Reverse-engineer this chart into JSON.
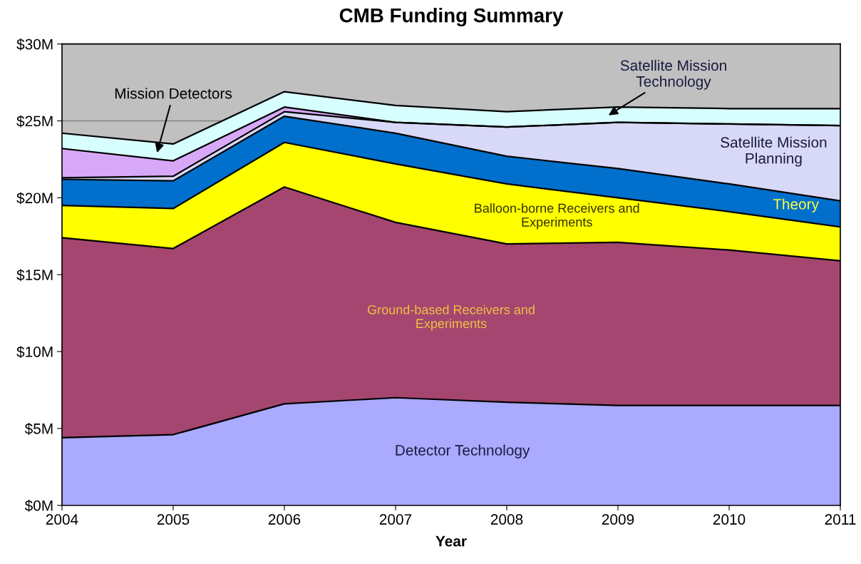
{
  "chart_data": {
    "type": "area",
    "stacked": true,
    "title": "CMB Funding Summary",
    "xlabel": "Year",
    "x": [
      2004,
      2005,
      2006,
      2007,
      2008,
      2009,
      2010,
      2011
    ],
    "series": [
      {
        "name": "Detector Technology",
        "color": "#aaaaff",
        "values": [
          4.4,
          4.6,
          6.6,
          7.0,
          6.7,
          6.5,
          6.5,
          6.5
        ]
      },
      {
        "name": "Ground-based Receivers and Experiments",
        "color": "#a54670",
        "values": [
          13.0,
          12.1,
          14.1,
          11.4,
          10.3,
          10.6,
          10.1,
          9.4
        ]
      },
      {
        "name": "Balloon-borne Receivers and Experiments",
        "color": "#ffff00",
        "values": [
          2.1,
          2.6,
          2.9,
          3.8,
          3.9,
          2.9,
          2.5,
          2.2
        ]
      },
      {
        "name": "Theory",
        "color": "#0070cc",
        "values": [
          1.7,
          1.8,
          1.7,
          2.0,
          1.8,
          1.9,
          1.8,
          1.7
        ]
      },
      {
        "name": "Satellite Mission Planning",
        "color": "#d8d8f8",
        "values": [
          0.1,
          0.3,
          0.3,
          0.7,
          1.9,
          3.0,
          3.9,
          4.9
        ]
      },
      {
        "name": "Mission Detectors",
        "color": "#d8a8f8",
        "values": [
          1.9,
          1.0,
          0.3,
          0,
          0,
          0,
          0,
          0
        ]
      },
      {
        "name": "Satellite Mission Technology",
        "color": "#d8ffff",
        "values": [
          1.0,
          1.1,
          1.0,
          1.1,
          1.0,
          1.0,
          1.0,
          1.1
        ]
      }
    ],
    "xlim": [
      2004,
      2011
    ],
    "xticks": [
      2004,
      2005,
      2006,
      2007,
      2008,
      2009,
      2010,
      2011
    ],
    "ylim": [
      0,
      30
    ],
    "yticks": [
      {
        "value": 0,
        "label": "$0M"
      },
      {
        "value": 5,
        "label": "$5M"
      },
      {
        "value": 10,
        "label": "$10M"
      },
      {
        "value": 15,
        "label": "$15M"
      },
      {
        "value": 20,
        "label": "$20M"
      },
      {
        "value": 25,
        "label": "$25M"
      },
      {
        "value": 30,
        "label": "$30M"
      }
    ],
    "grid": "y",
    "legend": false
  }
}
